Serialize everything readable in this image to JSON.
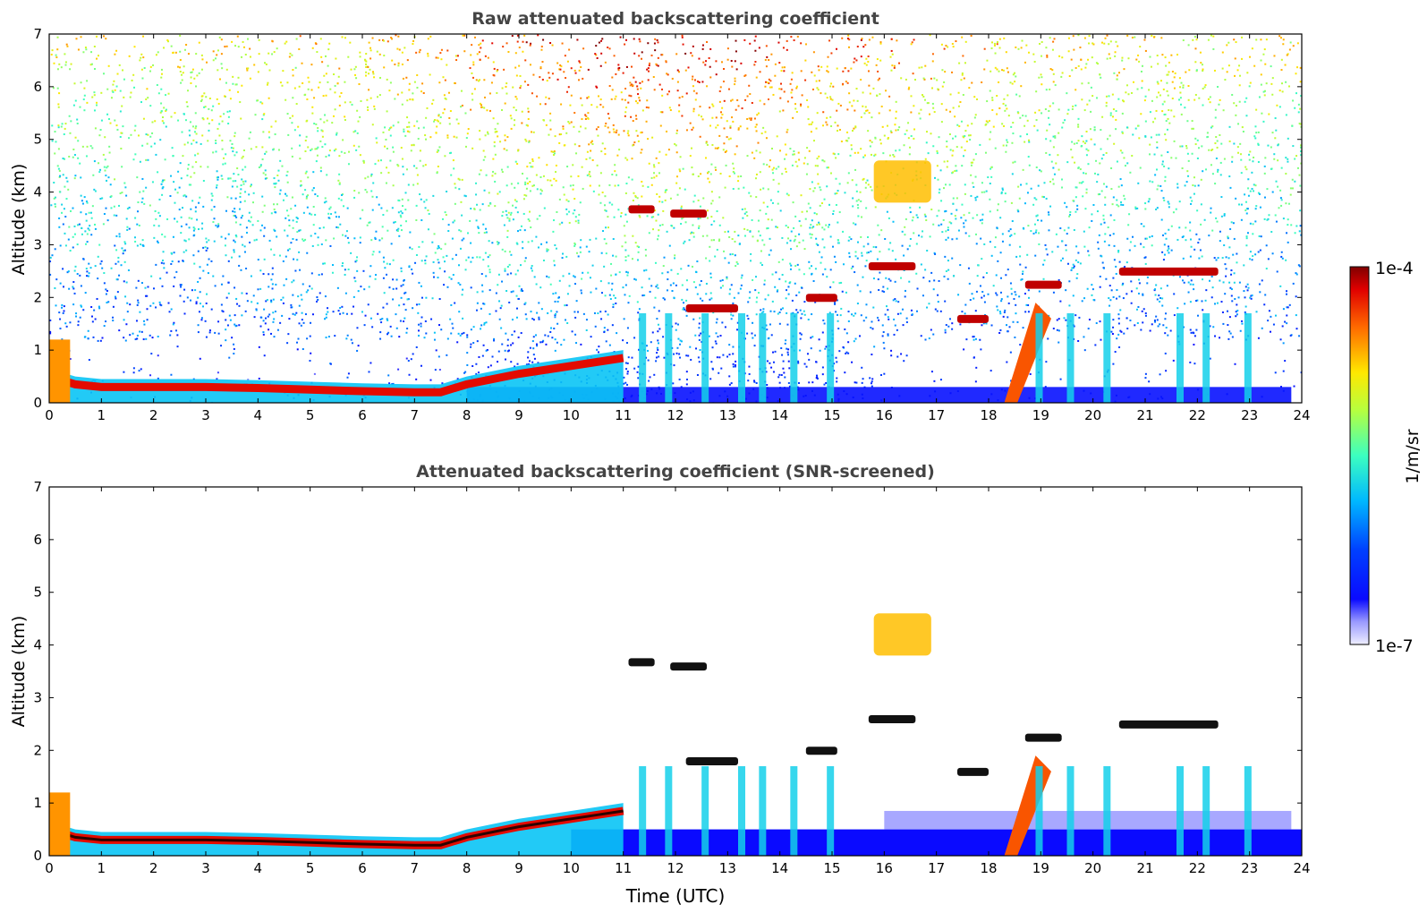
{
  "chart_data": [
    {
      "type": "heatmap",
      "title": "Raw attenuated backscattering coefficient",
      "xlabel": "",
      "ylabel": "Altitude (km)",
      "xlim": [
        0,
        24
      ],
      "ylim": [
        0,
        7
      ],
      "x_ticks": [
        0,
        1,
        2,
        3,
        4,
        5,
        6,
        7,
        8,
        9,
        10,
        11,
        12,
        13,
        14,
        15,
        16,
        17,
        18,
        19,
        20,
        21,
        22,
        23,
        24
      ],
      "y_ticks": [
        0,
        1,
        2,
        3,
        4,
        5,
        6,
        7
      ],
      "noise": "high",
      "features": [
        {
          "kind": "boundary_layer",
          "x": [
            0,
            0.5,
            1,
            1.5,
            2,
            3,
            4,
            5,
            6,
            7,
            7.5,
            8,
            8.5,
            9,
            10,
            11
          ],
          "y": [
            0.5,
            0.35,
            0.3,
            0.3,
            0.3,
            0.3,
            0.28,
            0.25,
            0.22,
            0.2,
            0.2,
            0.35,
            0.45,
            0.55,
            0.7,
            0.85
          ]
        },
        {
          "kind": "cloud_layer",
          "x": [
            11.1,
            11.6
          ],
          "y": 3.68
        },
        {
          "kind": "cloud_layer",
          "x": [
            11.9,
            12.6
          ],
          "y": 3.6
        },
        {
          "kind": "cloud_layer",
          "x": [
            12.2,
            13.2
          ],
          "y": 1.8
        },
        {
          "kind": "cloud_layer",
          "x": [
            14.5,
            15.1
          ],
          "y": 2.0
        },
        {
          "kind": "cloud_layer",
          "x": [
            15.7,
            16.6
          ],
          "y": 2.6
        },
        {
          "kind": "cloud_layer",
          "x": [
            18.7,
            19.4
          ],
          "y": 2.25
        },
        {
          "kind": "cloud_layer",
          "x": [
            20.5,
            22.4
          ],
          "y": 2.5
        },
        {
          "kind": "cloud_layer",
          "x": [
            17.4,
            18.0
          ],
          "y": 1.6
        },
        {
          "kind": "ice_cloud",
          "x": [
            15.8,
            16.9
          ],
          "y": [
            3.8,
            4.6
          ]
        },
        {
          "kind": "precipitation",
          "x": [
            18.3,
            18.9
          ],
          "y": [
            0,
            1.9
          ]
        },
        {
          "kind": "convective",
          "x": [
            13.0,
            15.0
          ],
          "y": [
            0.3,
            2.0
          ]
        }
      ]
    },
    {
      "type": "heatmap",
      "title": "Attenuated backscattering coefficient (SNR-screened)",
      "xlabel": "Time (UTC)",
      "ylabel": "Altitude (km)",
      "xlim": [
        0,
        24
      ],
      "ylim": [
        0,
        7
      ],
      "x_ticks": [
        0,
        1,
        2,
        3,
        4,
        5,
        6,
        7,
        8,
        9,
        10,
        11,
        12,
        13,
        14,
        15,
        16,
        17,
        18,
        19,
        20,
        21,
        22,
        23,
        24
      ],
      "y_ticks": [
        0,
        1,
        2,
        3,
        4,
        5,
        6,
        7
      ],
      "noise": "none",
      "features": [
        {
          "kind": "boundary_layer",
          "x": [
            0,
            0.5,
            1,
            1.5,
            2,
            3,
            4,
            5,
            6,
            7,
            7.5,
            8,
            8.5,
            9,
            10,
            11
          ],
          "y": [
            0.5,
            0.35,
            0.3,
            0.3,
            0.3,
            0.3,
            0.28,
            0.25,
            0.22,
            0.2,
            0.2,
            0.35,
            0.45,
            0.55,
            0.7,
            0.85
          ]
        },
        {
          "kind": "cloud_layer",
          "x": [
            11.1,
            11.6
          ],
          "y": 3.68
        },
        {
          "kind": "cloud_layer",
          "x": [
            11.9,
            12.6
          ],
          "y": 3.6
        },
        {
          "kind": "cloud_layer",
          "x": [
            12.2,
            13.2
          ],
          "y": 1.8
        },
        {
          "kind": "cloud_layer",
          "x": [
            14.5,
            15.1
          ],
          "y": 2.0
        },
        {
          "kind": "cloud_layer",
          "x": [
            15.7,
            16.6
          ],
          "y": 2.6
        },
        {
          "kind": "cloud_layer",
          "x": [
            18.7,
            19.4
          ],
          "y": 2.25
        },
        {
          "kind": "cloud_layer",
          "x": [
            20.5,
            22.4
          ],
          "y": 2.5
        },
        {
          "kind": "cloud_layer",
          "x": [
            17.4,
            18.0
          ],
          "y": 1.6
        },
        {
          "kind": "ice_cloud",
          "x": [
            15.8,
            16.9
          ],
          "y": [
            3.8,
            4.6
          ]
        },
        {
          "kind": "precipitation",
          "x": [
            18.3,
            18.9
          ],
          "y": [
            0,
            1.9
          ]
        },
        {
          "kind": "convective",
          "x": [
            13.0,
            15.0
          ],
          "y": [
            0.3,
            2.0
          ]
        }
      ]
    }
  ],
  "colorbar": {
    "label": "1/m/sr",
    "min_label": "1e-7",
    "max_label": "1e-4",
    "scale": "log",
    "range": [
      1e-07,
      0.0001
    ],
    "colormap": "jet"
  }
}
